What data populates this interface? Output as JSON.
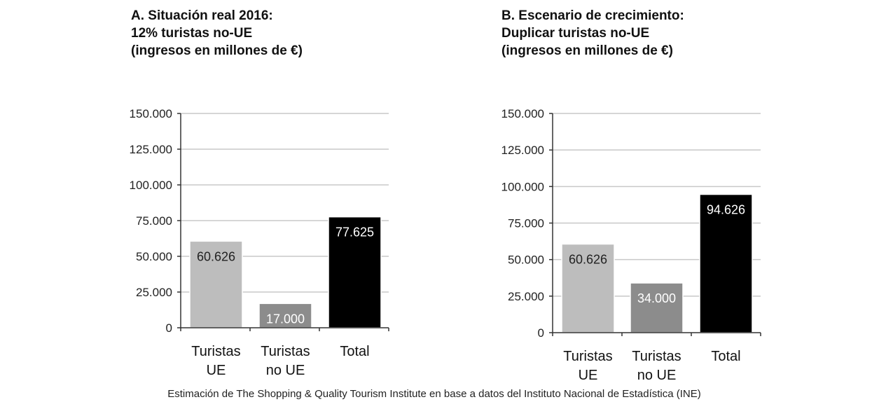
{
  "chart_data": [
    {
      "type": "bar",
      "title": [
        "A. Situación real 2016:",
        "12% turistas no-UE",
        "(ingresos en millones de €)"
      ],
      "categories": [
        [
          "Turistas",
          "UE"
        ],
        [
          "Turistas",
          "no UE"
        ],
        [
          "Total"
        ]
      ],
      "values": [
        60626,
        17000,
        77625
      ],
      "data_labels": [
        "60.626",
        "17.000",
        "77.625"
      ],
      "colors": [
        "#bdbdbd",
        "#8c8c8c",
        "#000000"
      ],
      "label_colors": [
        "#222222",
        "#ffffff",
        "#ffffff"
      ],
      "ylim": [
        0,
        150000
      ],
      "yticks": [
        0,
        25000,
        50000,
        75000,
        100000,
        125000,
        150000
      ],
      "ytick_labels": [
        "0",
        "25.000",
        "50.000",
        "75.000",
        "100.000",
        "125.000",
        "150.000"
      ],
      "grid": true
    },
    {
      "type": "bar",
      "title": [
        "B. Escenario de crecimiento:",
        "Duplicar turistas no-UE",
        "(ingresos en millones de €)"
      ],
      "categories": [
        [
          "Turistas",
          "UE"
        ],
        [
          "Turistas",
          "no UE"
        ],
        [
          "Total"
        ]
      ],
      "values": [
        60626,
        34000,
        94626
      ],
      "data_labels": [
        "60.626",
        "34.000",
        "94.626"
      ],
      "colors": [
        "#bdbdbd",
        "#8c8c8c",
        "#000000"
      ],
      "label_colors": [
        "#222222",
        "#ffffff",
        "#ffffff"
      ],
      "ylim": [
        0,
        150000
      ],
      "yticks": [
        0,
        25000,
        50000,
        75000,
        100000,
        125000,
        150000
      ],
      "ytick_labels": [
        "0",
        "25.000",
        "50.000",
        "75.000",
        "100.000",
        "125.000",
        "150.000"
      ],
      "grid": true
    }
  ],
  "source": "Estimación de The Shopping & Quality Tourism Institute en base a datos del Instituto Nacional de Estadística (INE)"
}
